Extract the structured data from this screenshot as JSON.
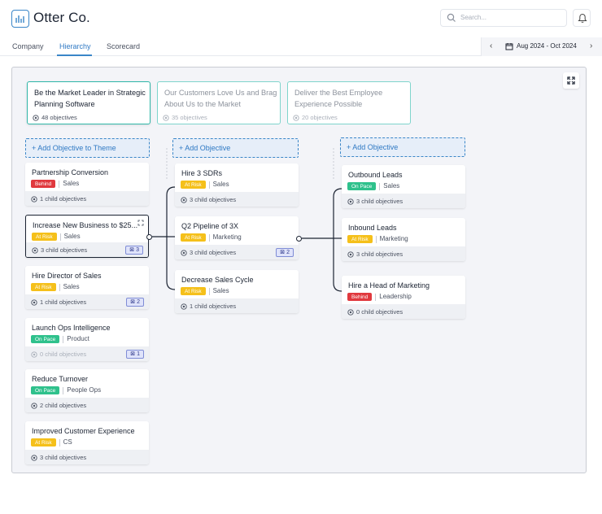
{
  "app": {
    "brand": "Otter Co.",
    "search_placeholder": "Search...",
    "accent_color": "#3a86c8"
  },
  "tabs": [
    {
      "label": "Company",
      "active": false
    },
    {
      "label": "Hierarchy",
      "active": true
    },
    {
      "label": "Scorecard",
      "active": false
    }
  ],
  "date_range": {
    "label": "Aug 2024 - Oct 2024"
  },
  "themes": [
    {
      "title": "Be the Market Leader in Strategic Planning Software",
      "objectives": "48 objectives",
      "active": true
    },
    {
      "title": "Our Customers Love Us and Brag About Us to the Market",
      "objectives": "35 objectives",
      "active": false
    },
    {
      "title": "Deliver the Best Employee Experience Possible",
      "objectives": "20 objectives",
      "active": false
    }
  ],
  "add_labels": {
    "theme": "+ Add Objective to Theme",
    "objective_mid": "+ Add Objective",
    "objective_right": "+ Add Objective"
  },
  "columns": {
    "left": [
      {
        "title": "Partnership Conversion",
        "status": "Behind",
        "status_color": "#e0393e",
        "team": "Sales",
        "children": "1 child objectives",
        "count": null
      },
      {
        "title": "Increase New Business to $25...",
        "status": "At Risk",
        "status_color": "#f5c01a",
        "team": "Sales",
        "children": "3 child objectives",
        "count": "3"
      },
      {
        "title": "Hire Director of Sales",
        "status": "At Risk",
        "status_color": "#f5c01a",
        "team": "Sales",
        "children": "1 child objectives",
        "count": "2"
      },
      {
        "title": "Launch Ops Intelligence",
        "status": "On Pace",
        "status_color": "#2fc18c",
        "team": "Product",
        "children": "0 child objectives",
        "count": "1"
      },
      {
        "title": "Reduce Turnover",
        "status": "On Pace",
        "status_color": "#2fc18c",
        "team": "People Ops",
        "children": "2 child objectives",
        "count": null
      },
      {
        "title": "Improved Customer Experience",
        "status": "At Risk",
        "status_color": "#f5c01a",
        "team": "CS",
        "children": "3 child objectives",
        "count": null
      }
    ],
    "middle": [
      {
        "title": "Hire 3 SDRs",
        "status": "At Risk",
        "status_color": "#f5c01a",
        "team": "Sales",
        "children": "3 child objectives",
        "count": null
      },
      {
        "title": "Q2 Pipeline of 3X",
        "status": "At Risk",
        "status_color": "#f5c01a",
        "team": "Marketing",
        "children": "3 child objectives",
        "count": "2"
      },
      {
        "title": "Decrease Sales Cycle",
        "status": "At Risk",
        "status_color": "#f5c01a",
        "team": "Sales",
        "children": "1 child objectives",
        "count": null
      }
    ],
    "right": [
      {
        "title": "Outbound Leads",
        "status": "On Pace",
        "status_color": "#2fc18c",
        "team": "Sales",
        "children": "3 child objectives",
        "count": null
      },
      {
        "title": "Inbound Leads",
        "status": "At Risk",
        "status_color": "#f5c01a",
        "team": "Marketing",
        "children": "3 child objectives",
        "count": null
      },
      {
        "title": "Hire a Head of Marketing",
        "status": "Behind",
        "status_color": "#e0393e",
        "team": "Leadership",
        "children": "0 child objectives",
        "count": null
      }
    ]
  }
}
